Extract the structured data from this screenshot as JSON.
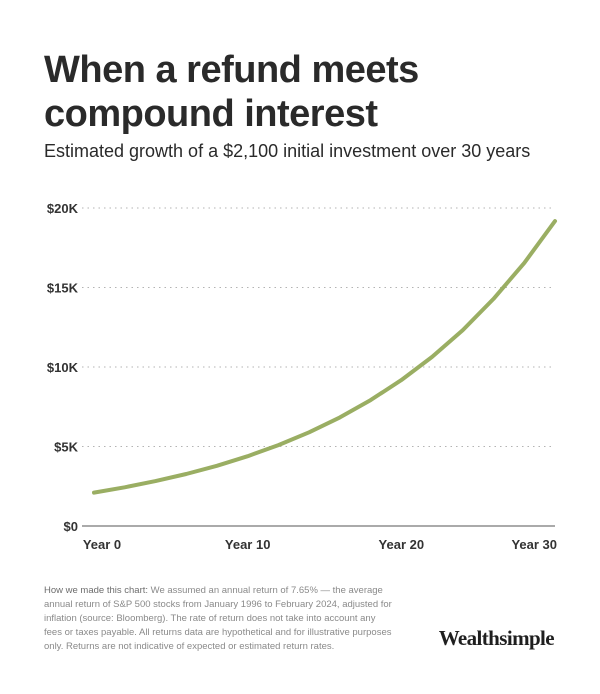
{
  "header": {
    "title": "When a refund meets compound interest",
    "subtitle": "Estimated growth of a $2,100 initial investment over 30 years"
  },
  "chart_data": {
    "type": "line",
    "title": "When a refund meets compound interest",
    "subtitle": "Estimated growth of a $2,100 initial investment over 30 years",
    "xlabel": "",
    "ylabel": "",
    "x_ticks": [
      "Year 0",
      "Year 10",
      "Year 20",
      "Year 30"
    ],
    "x_tick_values": [
      0,
      10,
      20,
      30
    ],
    "y_ticks": [
      "$0",
      "$5K",
      "$10K",
      "$15K",
      "$20K"
    ],
    "y_tick_values": [
      0,
      5000,
      10000,
      15000,
      20000
    ],
    "xlim": [
      0,
      30
    ],
    "ylim": [
      0,
      20000
    ],
    "grid": "horizontal dotted",
    "legend": "none",
    "line_color": "#9aae63",
    "series": [
      {
        "x": [
          0,
          2,
          4,
          6,
          8,
          10,
          12,
          14,
          16,
          18,
          20,
          22,
          24,
          26,
          28,
          30
        ],
        "values": [
          2100,
          2434,
          2821,
          3269,
          3788,
          4390,
          5087,
          5895,
          6832,
          7917,
          9175,
          10633,
          12322,
          14280,
          16548,
          19177
        ]
      }
    ]
  },
  "footer": {
    "methodology_label": "How we made this chart:",
    "methodology_text": " We assumed an annual return of 7.65% — the average annual return of S&P 500 stocks from January 1996 to February 2024, adjusted for inflation (source: Bloomberg). The rate of return does not take into account any fees or taxes payable. All returns data are hypothetical and for illustrative purposes only. Returns are not indicative of expected or estimated return rates.",
    "brand": "Wealthsimple"
  }
}
